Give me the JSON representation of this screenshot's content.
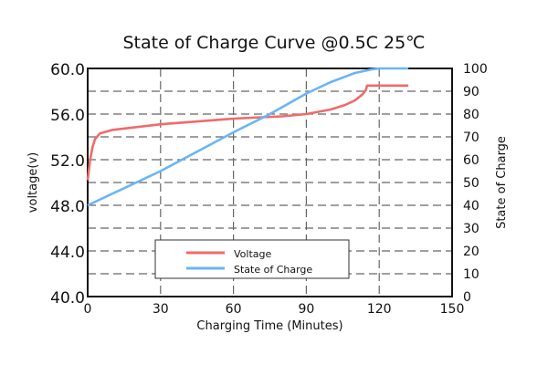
{
  "chart_data": {
    "type": "line",
    "title": "State of Charge Curve @0.5C 25℃",
    "xlabel": "Charging Time (Minutes)",
    "ylabel": "voltage(v)",
    "y2label": "State of Charge",
    "xlim": [
      0,
      150
    ],
    "ylim": [
      40,
      60
    ],
    "y2lim": [
      0,
      100
    ],
    "xticks": [
      "0",
      "30",
      "60",
      "90",
      "120",
      "150"
    ],
    "yticks": [
      "40.0",
      "44.0",
      "48.0",
      "52.0",
      "56.0",
      "60.0"
    ],
    "y2ticks": [
      "0",
      "10",
      "20",
      "30",
      "40",
      "50",
      "60",
      "70",
      "80",
      "90",
      "100"
    ],
    "grid": true,
    "legend_position": "bottom-center",
    "series": [
      {
        "name": "Voltage",
        "axis": "left",
        "color": "#f06a6a",
        "x": [
          0,
          1,
          2,
          3,
          5,
          10,
          30,
          60,
          80,
          90,
          100,
          106,
          110,
          113,
          114.5,
          115,
          132
        ],
        "y": [
          50.2,
          52.0,
          53.1,
          53.8,
          54.3,
          54.6,
          55.1,
          55.6,
          55.8,
          56.0,
          56.4,
          56.8,
          57.2,
          57.7,
          58.1,
          58.5,
          58.5
        ]
      },
      {
        "name": "State of Charge",
        "axis": "right",
        "color": "#6ab4f5",
        "x": [
          0,
          30,
          60,
          75,
          90,
          100,
          110,
          117,
          120,
          132
        ],
        "y": [
          40,
          55,
          72,
          80,
          89,
          94,
          98,
          99.6,
          100,
          100
        ]
      }
    ]
  }
}
